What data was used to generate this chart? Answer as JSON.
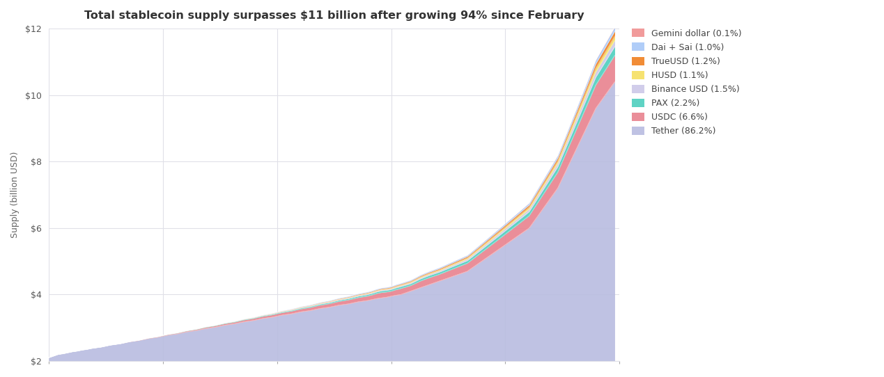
{
  "title": "Total stablecoin supply surpasses $11 billion after growing 94% since February",
  "ylabel": "Supply (billion USD)",
  "ylim": [
    2,
    12
  ],
  "yticks": [
    2,
    4,
    6,
    8,
    10,
    12
  ],
  "background_color": "#ffffff",
  "grid_color": "#e0e0e8",
  "legend_entries": [
    "Gemini dollar (0.1%)",
    "Dai + Sai (1.0%)",
    "TrueUSD (1.2%)",
    "HUSD (1.1%)",
    "Binance USD (1.5%)",
    "PAX (2.2%)",
    "USDC (6.6%)",
    "Tether (86.2%)"
  ],
  "colors": {
    "Tether": "#b8bce0",
    "USDC": "#e8828e",
    "PAX": "#4ecfbe",
    "Binance USD": "#ccc8e8",
    "HUSD": "#f5df60",
    "TrueUSD": "#f08020",
    "Dai_Sai": "#a8c8f8",
    "Gemini": "#f09090"
  },
  "tether_base": [
    2.1,
    2.15,
    2.2,
    2.22,
    2.25,
    2.28,
    2.3,
    2.33,
    2.35,
    2.38,
    2.4,
    2.42,
    2.45,
    2.48,
    2.5,
    2.52,
    2.55,
    2.58,
    2.6,
    2.62,
    2.65,
    2.68,
    2.7,
    2.72,
    2.75,
    2.78,
    2.8,
    2.82,
    2.85,
    2.88,
    2.9,
    2.92,
    2.95,
    2.98,
    3.0,
    3.02,
    3.05,
    3.08,
    3.1,
    3.12,
    3.15,
    3.18,
    3.2,
    3.22,
    3.25,
    3.28,
    3.3,
    3.32,
    3.35,
    3.38,
    3.4,
    3.42,
    3.45,
    3.48,
    3.5,
    3.52,
    3.55,
    3.58,
    3.6,
    3.62,
    3.65,
    3.68,
    3.7,
    3.72,
    3.75,
    3.78,
    3.8,
    3.82,
    3.85,
    3.88,
    3.9,
    3.92,
    3.95,
    3.98,
    4.0,
    4.05,
    4.1,
    4.15,
    4.2,
    4.25,
    4.3,
    4.35,
    4.4,
    4.45,
    4.5,
    4.55,
    4.6,
    4.65,
    4.7,
    4.8,
    4.9,
    5.0,
    5.1,
    5.2,
    5.3,
    5.4,
    5.5,
    5.6,
    5.7,
    5.8,
    5.9,
    6.0,
    6.2,
    6.4,
    6.6,
    6.8,
    7.0,
    7.2,
    7.5,
    7.8,
    8.1,
    8.4,
    8.7,
    9.0,
    9.3,
    9.6,
    9.8,
    10.0,
    10.2,
    10.4
  ]
}
